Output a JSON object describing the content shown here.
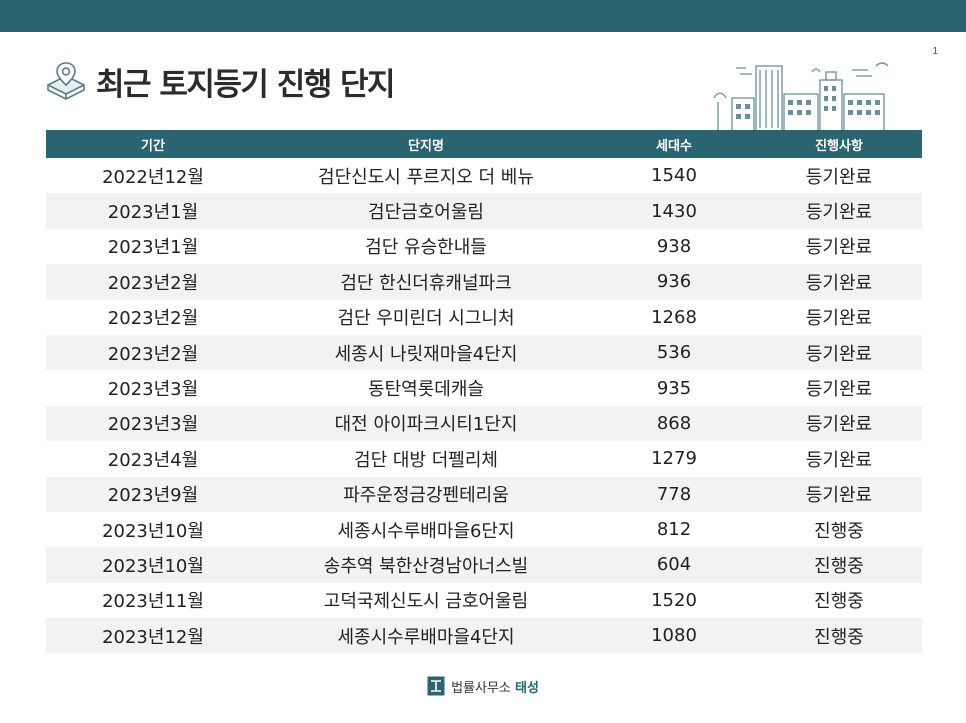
{
  "slide": {
    "number": "1",
    "title": "최근 토지등기 진행 단지"
  },
  "icons": {
    "title_icon": "map-pin-box-icon",
    "city_icon": "city-skyline-icon",
    "logo_icon": "firm-logo-icon"
  },
  "colors": {
    "accent": "#2a6470",
    "row_alt": "#f2f2f2"
  },
  "table": {
    "headers": [
      "기간",
      "단지명",
      "세대수",
      "진행사항"
    ],
    "rows": [
      [
        "2022년12월",
        "검단신도시 푸르지오 더 베뉴",
        "1540",
        "등기완료"
      ],
      [
        "2023년1월",
        "검단금호어울림",
        "1430",
        "등기완료"
      ],
      [
        "2023년1월",
        "검단 유승한내들",
        "938",
        "등기완료"
      ],
      [
        "2023년2월",
        "검단 한신더휴캐널파크",
        "936",
        "등기완료"
      ],
      [
        "2023년2월",
        "검단 우미린더 시그니처",
        "1268",
        "등기완료"
      ],
      [
        "2023년2월",
        "세종시 나릿재마을4단지",
        "536",
        "등기완료"
      ],
      [
        "2023년3월",
        "동탄역롯데캐슬",
        "935",
        "등기완료"
      ],
      [
        "2023년3월",
        "대전 아이파크시티1단지",
        "868",
        "등기완료"
      ],
      [
        "2023년4월",
        "검단 대방 더펠리체",
        "1279",
        "등기완료"
      ],
      [
        "2023년9월",
        "파주운정금강펜테리움",
        "778",
        "등기완료"
      ],
      [
        "2023년10월",
        "세종시수루배마을6단지",
        "812",
        "진행중"
      ],
      [
        "2023년10월",
        "송추역 북한산경남아너스빌",
        "604",
        "진행중"
      ],
      [
        "2023년11월",
        "고덕국제신도시 금호어울림",
        "1520",
        "진행중"
      ],
      [
        "2023년12월",
        "세종시수루배마을4단지",
        "1080",
        "진행중"
      ]
    ]
  },
  "footer": {
    "firm_prefix": "법률사무소",
    "firm_name": "태성"
  }
}
